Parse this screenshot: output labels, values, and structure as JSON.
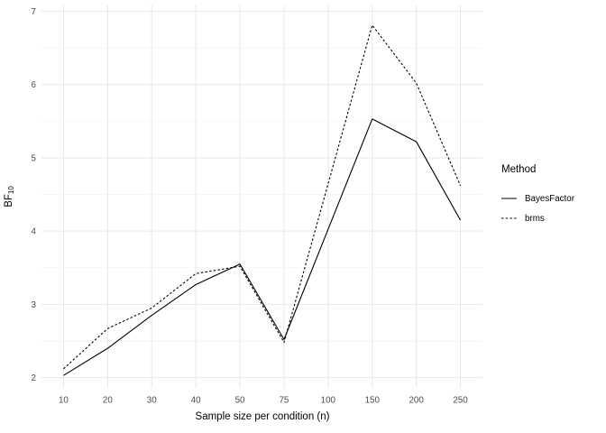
{
  "colors": {
    "background": "#ffffff",
    "line": "#000000",
    "grid_major": "#e7e7e7",
    "grid_minor": "#f2f2f2",
    "tick_text": "#4d4d4d",
    "title_text": "#000000"
  },
  "chart_data": {
    "type": "line",
    "title": "",
    "xlabel": "Sample size per condition (n)",
    "ylabel": "BF10",
    "ylabel_base": "BF",
    "ylabel_sub": "10",
    "x_categories": [
      "10",
      "20",
      "30",
      "40",
      "50",
      "75",
      "100",
      "150",
      "200",
      "250"
    ],
    "x_scale": "discrete",
    "y_major_ticks": [
      2,
      3,
      4,
      5,
      6,
      7
    ],
    "y_minor_ticks": [
      2.5,
      3.5,
      4.5,
      5.5,
      6.5
    ],
    "ylim": [
      1.86,
      7.08
    ],
    "grid": "major-and-minor-horizontal, major-vertical, no panel border, no axis ticks",
    "legend_title": "Method",
    "legend_position": "right",
    "series": [
      {
        "name": "BayesFactor",
        "line_style": "solid",
        "color": "#000000",
        "points": [
          {
            "x": "10",
            "y": 2.03
          },
          {
            "x": "20",
            "y": 2.4
          },
          {
            "x": "30",
            "y": 2.85
          },
          {
            "x": "40",
            "y": 3.27
          },
          {
            "x": "50",
            "y": 3.55
          },
          {
            "x": "75",
            "y": 2.52
          },
          {
            "x": "150",
            "y": 5.53
          },
          {
            "x": "200",
            "y": 5.22
          },
          {
            "x": "250",
            "y": 4.15
          }
        ]
      },
      {
        "name": "brms",
        "line_style": "dashed",
        "color": "#000000",
        "points": [
          {
            "x": "10",
            "y": 2.12
          },
          {
            "x": "20",
            "y": 2.67
          },
          {
            "x": "30",
            "y": 2.95
          },
          {
            "x": "40",
            "y": 3.42
          },
          {
            "x": "50",
            "y": 3.52
          },
          {
            "x": "75",
            "y": 2.48
          },
          {
            "x": "150",
            "y": 6.81
          },
          {
            "x": "200",
            "y": 6.02
          },
          {
            "x": "250",
            "y": 4.62
          }
        ]
      }
    ]
  }
}
